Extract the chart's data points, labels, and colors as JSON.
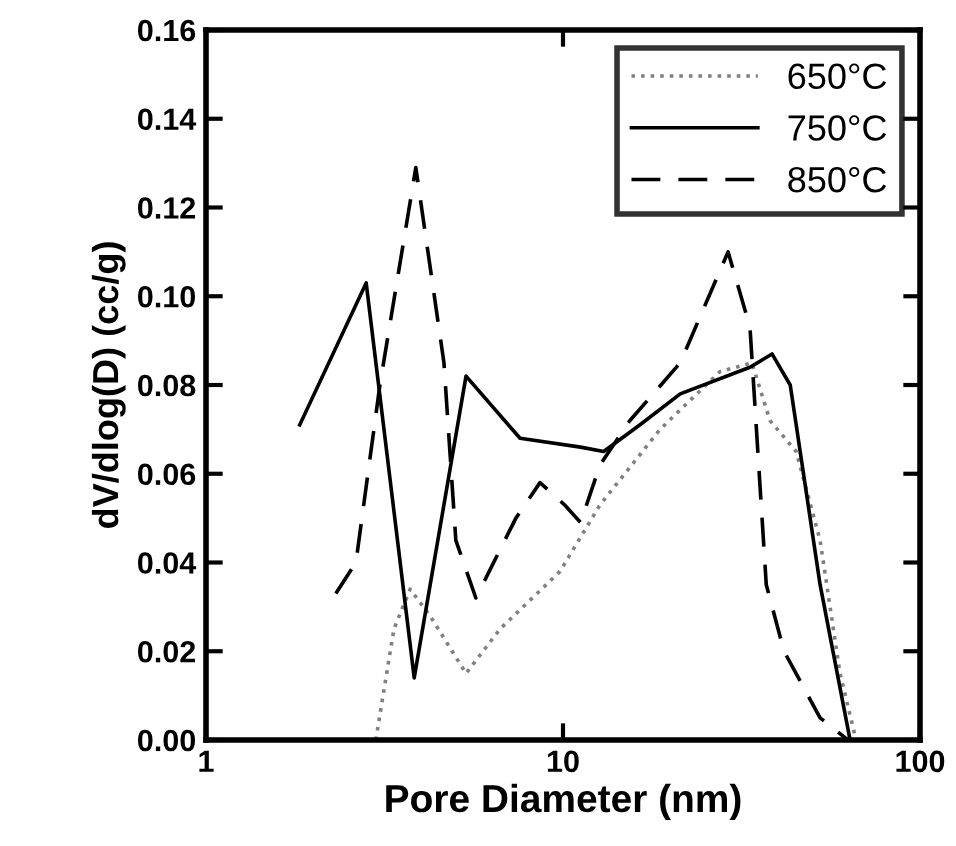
{
  "chart_data": {
    "type": "line",
    "xlabel": "Pore Diameter (nm)",
    "ylabel": "dV/dlog(D) (cc/g)",
    "log": "x",
    "xlim": [
      1,
      100
    ],
    "xticks": [
      1,
      10,
      100
    ],
    "ylim": [
      0,
      0.16
    ],
    "yticks": [
      {
        "value": 0,
        "label": "0.00"
      },
      {
        "value": 0.02,
        "label": "0.02"
      },
      {
        "value": 0.04,
        "label": "0.04"
      },
      {
        "value": 0.06,
        "label": "0.06"
      },
      {
        "value": 0.08,
        "label": "0.08"
      },
      {
        "value": 0.1,
        "label": "0.10"
      },
      {
        "value": 0.12,
        "label": "0.12"
      },
      {
        "value": 0.14,
        "label": "0.14"
      },
      {
        "value": 0.16,
        "label": "0.16"
      }
    ],
    "grid": false,
    "legend": "top right",
    "marker": "none",
    "series": [
      {
        "name": "650°C",
        "color": "#808080",
        "line_style": "dotted",
        "x": [
          2.99,
          3.36,
          3.73,
          4.24,
          5.35,
          6.66,
          9.81,
          12.7,
          18.7,
          27.5,
          33.8,
          38.0,
          45.0,
          52.5,
          59.7,
          66.2
        ],
        "values": [
          0.0,
          0.025,
          0.034,
          0.028,
          0.015,
          0.025,
          0.038,
          0.053,
          0.07,
          0.083,
          0.085,
          0.072,
          0.065,
          0.045,
          0.015,
          0.0
        ]
      },
      {
        "name": "750°C",
        "color": "#000000",
        "line_style": "solid",
        "x": [
          1.83,
          2.81,
          3.83,
          5.35,
          7.58,
          11.2,
          13.0,
          16.4,
          21.3,
          33.4,
          38.5,
          43.3,
          52.5,
          63.7
        ],
        "values": [
          0.071,
          0.103,
          0.014,
          0.082,
          0.068,
          0.066,
          0.065,
          0.071,
          0.078,
          0.084,
          0.087,
          0.08,
          0.035,
          0.0
        ]
      },
      {
        "name": "850°C",
        "color": "#000000",
        "line_style": "dashed",
        "x": [
          2.31,
          2.63,
          3.07,
          3.87,
          4.64,
          5.01,
          5.7,
          7.38,
          8.62,
          10.1,
          11.2,
          12.7,
          15.4,
          21.3,
          29.0,
          33.4,
          37.1,
          41.6,
          52.5,
          62.8
        ],
        "values": [
          0.033,
          0.04,
          0.08,
          0.129,
          0.085,
          0.045,
          0.032,
          0.05,
          0.058,
          0.053,
          0.049,
          0.062,
          0.072,
          0.085,
          0.11,
          0.093,
          0.035,
          0.02,
          0.005,
          0.0
        ]
      }
    ]
  }
}
